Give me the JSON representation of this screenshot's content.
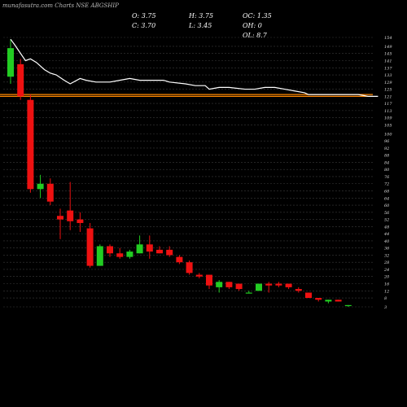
{
  "header": {
    "watermark": "munafasutra.com Charts NSE ABGSHIP",
    "ohlc": {
      "o": "O: 3.75",
      "h": "H: 3.75",
      "c": "C: 3.70",
      "l": "L: 3.45"
    },
    "stats": {
      "oc": "OC: 1.35",
      "oh": "OH: 0",
      "ol": "OL: 8.7"
    }
  },
  "colors": {
    "up": "#22cc22",
    "down": "#ee1111",
    "background": "#000000",
    "grid": "#3a3a3a",
    "line": "#ffffff",
    "level": "#ff8800"
  },
  "chart_data": {
    "type": "candlestick",
    "title": "ABGSHIP",
    "ylim": [
      3,
      154
    ],
    "y_ticks": [
      154,
      149,
      145,
      141,
      137,
      133,
      129,
      125,
      121,
      117,
      113,
      109,
      105,
      100,
      96,
      92,
      88,
      84,
      80,
      76,
      72,
      68,
      64,
      60,
      56,
      52,
      48,
      44,
      40,
      36,
      32,
      28,
      24,
      20,
      16,
      12,
      8,
      3
    ],
    "level_lines": [
      122,
      121
    ],
    "candles": [
      {
        "o": 132,
        "h": 153,
        "l": 128,
        "c": 148
      },
      {
        "o": 139,
        "h": 142,
        "l": 119,
        "c": 121
      },
      {
        "o": 119,
        "h": 122,
        "l": 67,
        "c": 69
      },
      {
        "o": 69,
        "h": 77,
        "l": 64,
        "c": 72
      },
      {
        "o": 72,
        "h": 75,
        "l": 60,
        "c": 62
      },
      {
        "o": 54,
        "h": 58,
        "l": 41,
        "c": 52
      },
      {
        "o": 57,
        "h": 73,
        "l": 46,
        "c": 51
      },
      {
        "o": 52,
        "h": 56,
        "l": 45,
        "c": 50
      },
      {
        "o": 47,
        "h": 50,
        "l": 25,
        "c": 26
      },
      {
        "o": 26,
        "h": 38,
        "l": 26,
        "c": 37
      },
      {
        "o": 37,
        "h": 38,
        "l": 31,
        "c": 33
      },
      {
        "o": 33,
        "h": 36,
        "l": 30,
        "c": 31
      },
      {
        "o": 31,
        "h": 35,
        "l": 30,
        "c": 34
      },
      {
        "o": 33,
        "h": 43,
        "l": 33,
        "c": 38
      },
      {
        "o": 38,
        "h": 43,
        "l": 30,
        "c": 34
      },
      {
        "o": 35,
        "h": 37,
        "l": 33,
        "c": 33
      },
      {
        "o": 35,
        "h": 37,
        "l": 31,
        "c": 32
      },
      {
        "o": 31,
        "h": 32,
        "l": 27,
        "c": 28
      },
      {
        "o": 28,
        "h": 29,
        "l": 21,
        "c": 22
      },
      {
        "o": 21,
        "h": 22,
        "l": 19,
        "c": 20
      },
      {
        "o": 21,
        "h": 21,
        "l": 13,
        "c": 15
      },
      {
        "o": 14,
        "h": 18,
        "l": 11,
        "c": 17
      },
      {
        "o": 17,
        "h": 17,
        "l": 13,
        "c": 14
      },
      {
        "o": 16,
        "h": 16,
        "l": 12,
        "c": 13
      },
      {
        "o": 11,
        "h": 12,
        "l": 11,
        "c": 11
      },
      {
        "o": 12,
        "h": 16,
        "l": 12,
        "c": 16
      },
      {
        "o": 16,
        "h": 17,
        "l": 11,
        "c": 15
      },
      {
        "o": 16,
        "h": 17,
        "l": 14,
        "c": 15
      },
      {
        "o": 16,
        "h": 16,
        "l": 13,
        "c": 14
      },
      {
        "o": 13,
        "h": 14,
        "l": 11,
        "c": 12
      },
      {
        "o": 11,
        "h": 11,
        "l": 8,
        "c": 8
      },
      {
        "o": 8,
        "h": 8,
        "l": 6,
        "c": 7
      },
      {
        "o": 6,
        "h": 7,
        "l": 5,
        "c": 7
      },
      {
        "o": 7,
        "h": 7,
        "l": 6,
        "c": 6
      },
      {
        "o": 4,
        "h": 4,
        "l": 3,
        "c": 4
      }
    ],
    "overlay_line": [
      153,
      150,
      141,
      142,
      140,
      136,
      134,
      133,
      130,
      128,
      131,
      130,
      129,
      129,
      130,
      131,
      130,
      130,
      130,
      129,
      128,
      127,
      127,
      125,
      126,
      126,
      125,
      125,
      126,
      126,
      125,
      124,
      123,
      122,
      122,
      122,
      122,
      122,
      122,
      121,
      121
    ],
    "overlay_line_x_indices": [
      0,
      0.4,
      1.5,
      2,
      2.6,
      3.4,
      4,
      4.6,
      5.4,
      6,
      7,
      7.6,
      8.6,
      10,
      11,
      12,
      13,
      14,
      15.4,
      16,
      17.6,
      18.6,
      19.6,
      20,
      21,
      22,
      23.6,
      24.6,
      25.6,
      26.6,
      27.6,
      28.6,
      29.6,
      30,
      31,
      32,
      33,
      34,
      35,
      36,
      37
    ]
  }
}
